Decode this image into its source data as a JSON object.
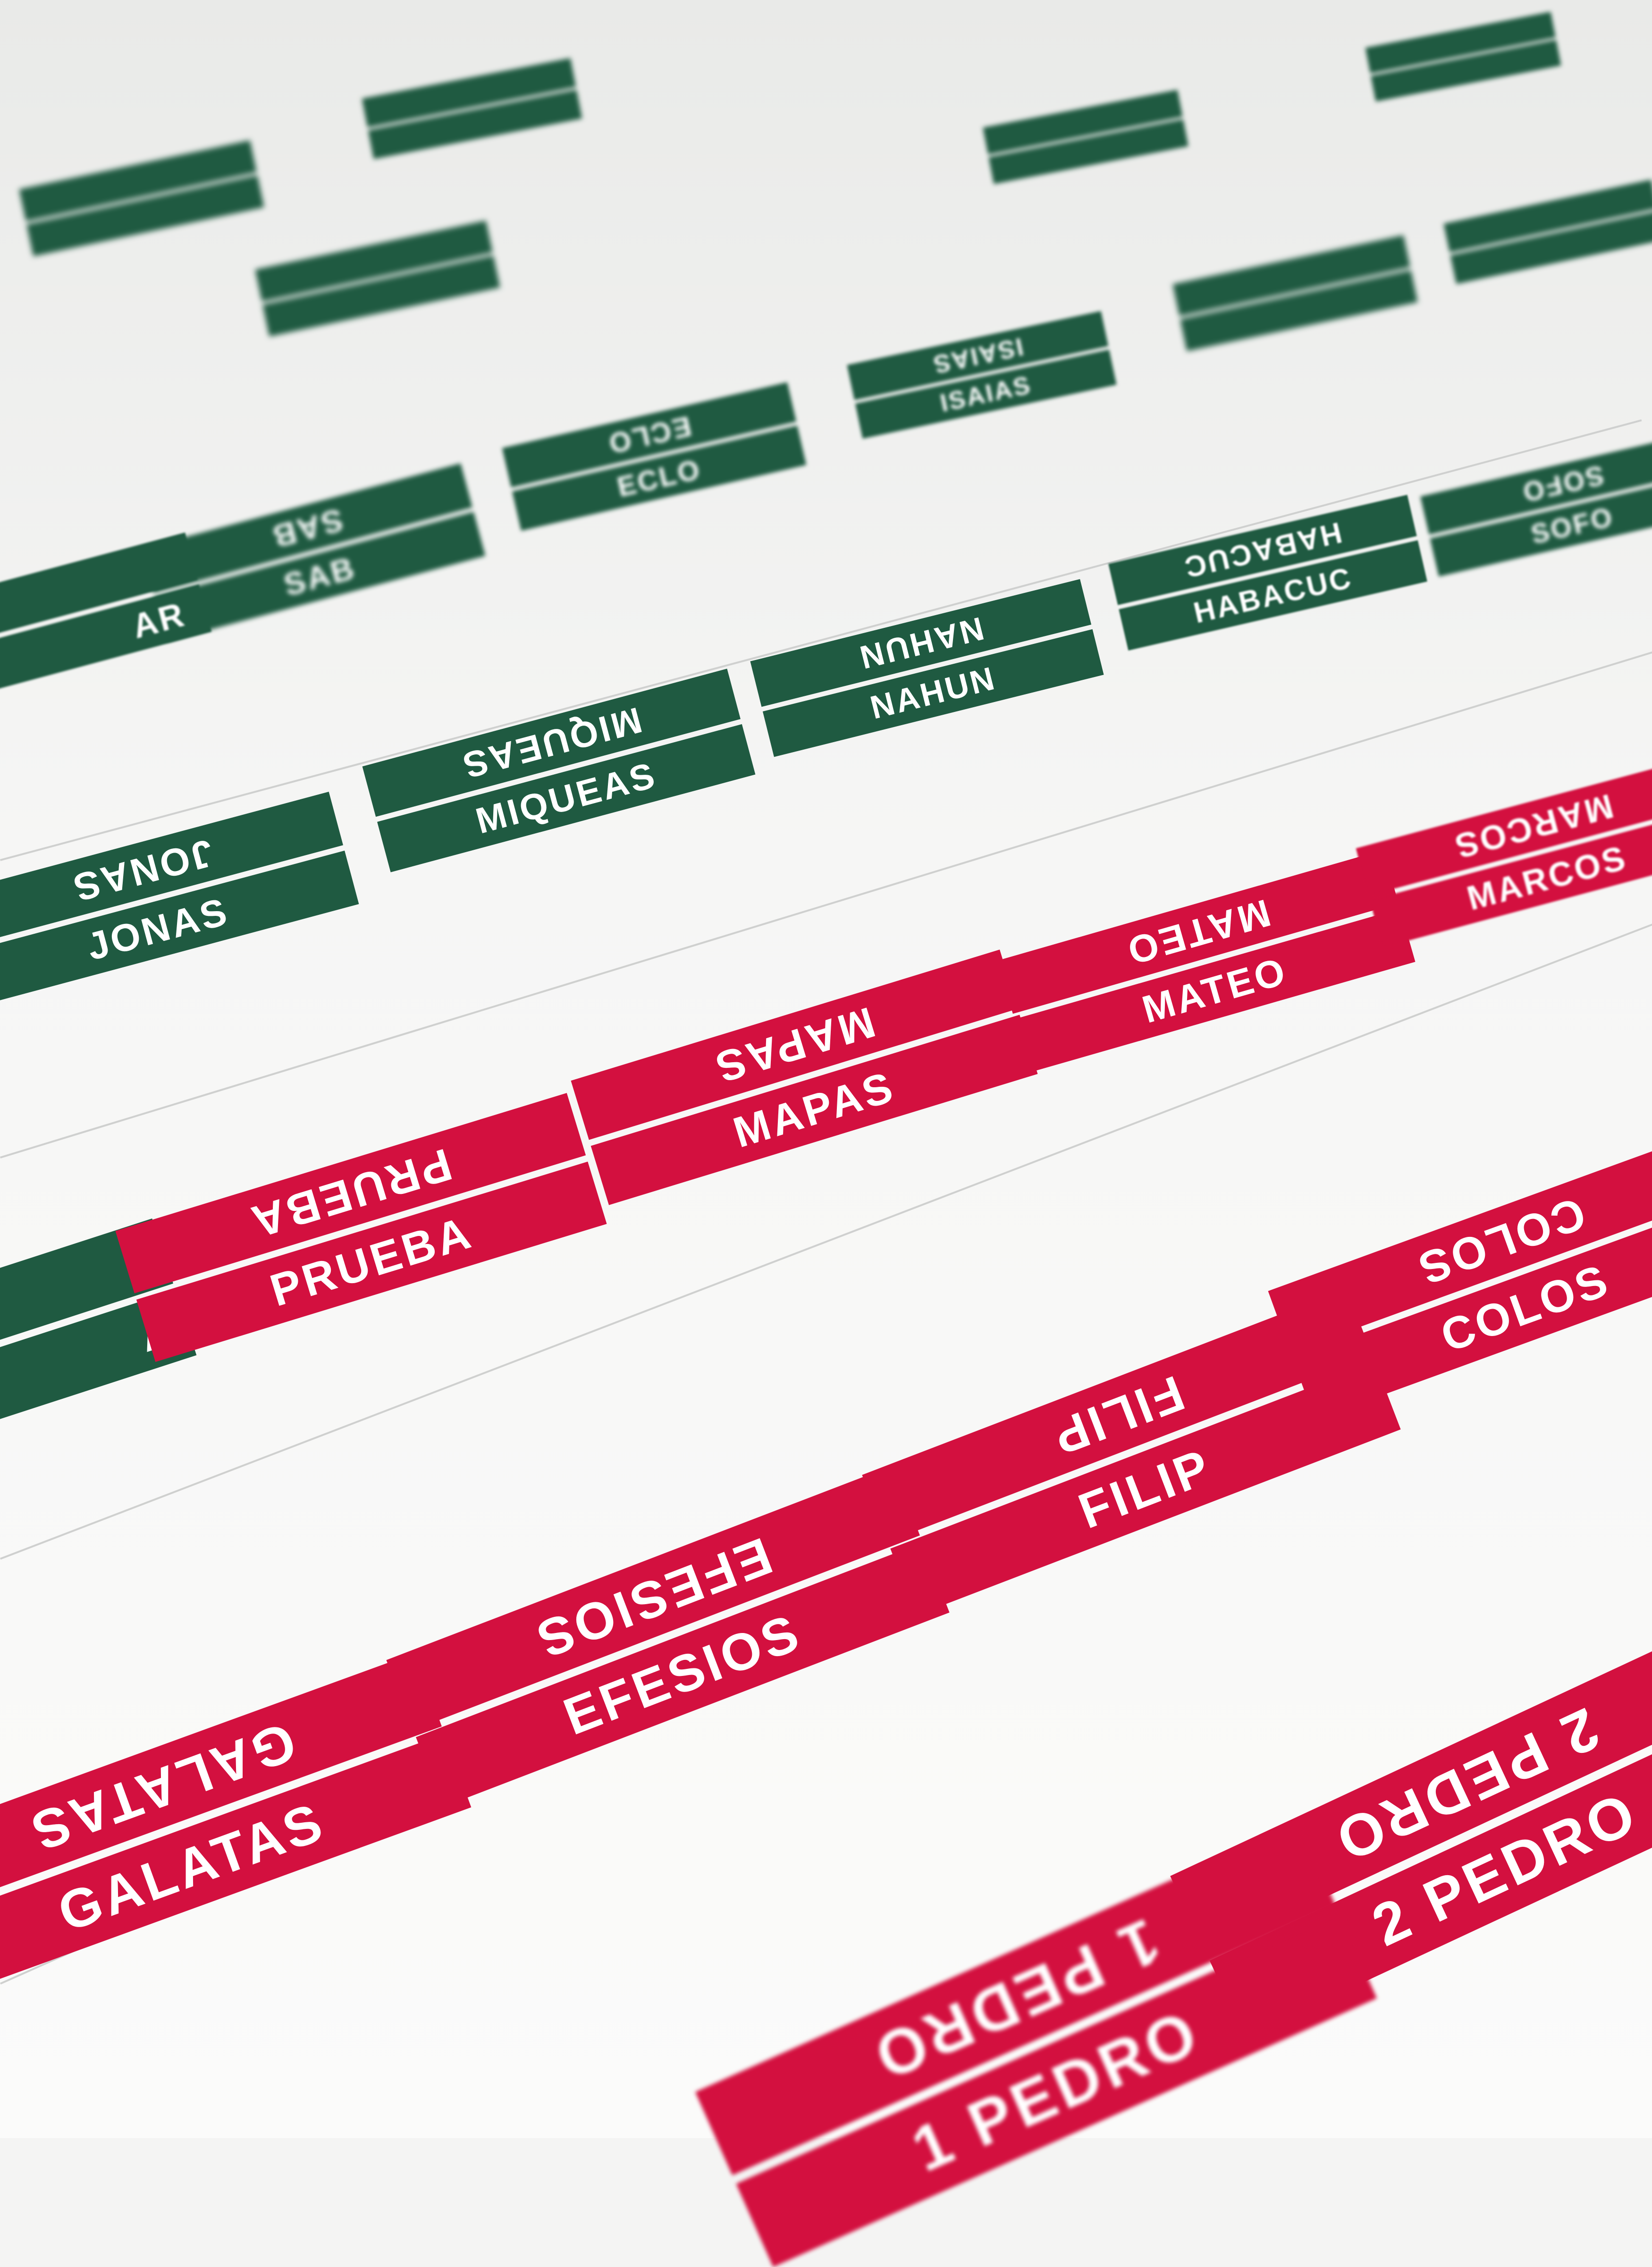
{
  "colors": {
    "red_tab": "#d3103f",
    "green_tab": "#1f5a41",
    "paper": "#f6f6f5"
  },
  "tabs": {
    "prueba": "PRUEBA",
    "mapas": "MAPAS",
    "mateo": "MATEO",
    "marcos": "MARCOS",
    "colos": "COLOS",
    "filip": "FILIP",
    "efesios": "EFESIOS",
    "galatas": "GALATAS",
    "pedro2": "2 PEDRO",
    "pedro1": "1 PEDRO",
    "jonas": "JONAS",
    "miqueas": "MIQUEAS",
    "nahun": "NAHUN",
    "habacuc": "HABACUC",
    "sofo": "SOFO",
    "sab": "SAB",
    "eclo": "ECLO",
    "isaias": "ISAIAS",
    "a": "A",
    "ar": "AR"
  }
}
